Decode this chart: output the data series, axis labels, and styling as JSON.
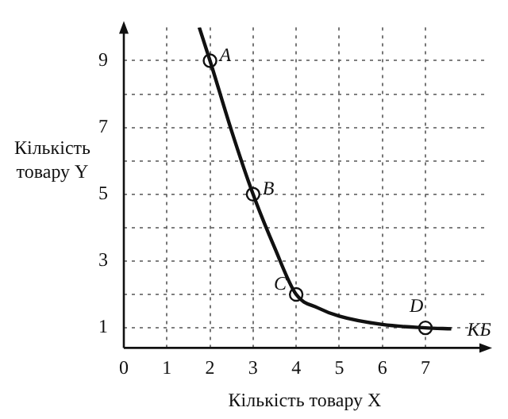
{
  "chart_data": {
    "type": "line",
    "xlabel": "Кількість товару X",
    "ylabel": "Кількість товару Y",
    "xlim": [
      0,
      8.4
    ],
    "ylim": [
      0.4,
      10
    ],
    "xticks": [
      0,
      1,
      2,
      3,
      4,
      5,
      6,
      7
    ],
    "yticks": [
      {
        "value": 1,
        "label": "1"
      },
      {
        "value": 2,
        "label": null
      },
      {
        "value": 3,
        "label": "3"
      },
      {
        "value": 4,
        "label": null
      },
      {
        "value": 5,
        "label": "5"
      },
      {
        "value": 6,
        "label": null
      },
      {
        "value": 7,
        "label": "7"
      },
      {
        "value": 8,
        "label": null
      },
      {
        "value": 9,
        "label": "9"
      }
    ],
    "grid": true,
    "legend": false,
    "series": [
      {
        "type": "line",
        "color": "#111111",
        "marker": "none",
        "line_style": "solid",
        "x": [
          1.75,
          2,
          2.5,
          3,
          3.5,
          4,
          4.5,
          5,
          6,
          7,
          7.6
        ],
        "values": [
          10,
          9,
          6.9,
          5,
          3.4,
          2,
          1.6,
          1.35,
          1.1,
          1,
          0.97
        ]
      },
      {
        "type": "scatter",
        "color": "#111111",
        "marker": "circle",
        "x": [
          2,
          3,
          4,
          7
        ],
        "values": [
          9,
          5,
          2,
          1
        ]
      }
    ],
    "annotations": [
      {
        "text": "A",
        "x": 2,
        "y": 9
      },
      {
        "text": "B",
        "x": 3,
        "y": 5
      },
      {
        "text": "C",
        "x": 4,
        "y": 2
      },
      {
        "text": "D",
        "x": 7,
        "y": 1
      },
      {
        "text": "КБ",
        "x": 7.6,
        "y": 0.97
      }
    ]
  }
}
